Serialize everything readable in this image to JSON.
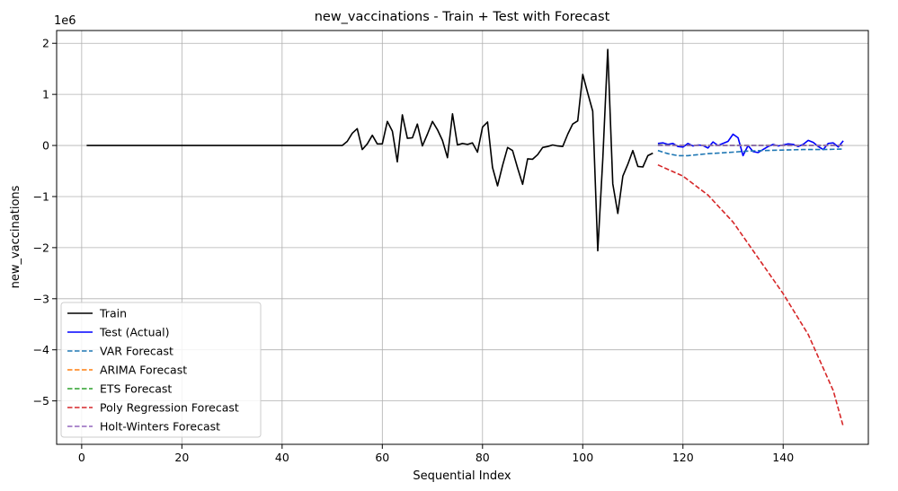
{
  "chart_data": {
    "type": "line",
    "title": "new_vaccinations - Train + Test with Forecast",
    "xlabel": "Sequential Index",
    "ylabel": "new_vaccinations",
    "offset_label": "1e6",
    "xlim": [
      -5,
      157
    ],
    "ylim": [
      -5.85,
      2.25
    ],
    "xticks": [
      0,
      20,
      40,
      60,
      80,
      100,
      120,
      140
    ],
    "yticks": [
      -5,
      -4,
      -3,
      -2,
      -1,
      0,
      1,
      2
    ],
    "grid": true,
    "legend_position": "lower-left",
    "series": [
      {
        "name": "Train",
        "color": "#000000",
        "dashed": false,
        "x": [
          1,
          52,
          53,
          54,
          55,
          56,
          57,
          58,
          59,
          60,
          61,
          62,
          63,
          64,
          65,
          66,
          67,
          68,
          69,
          70,
          71,
          72,
          73,
          74,
          75,
          76,
          77,
          78,
          79,
          80,
          81,
          82,
          83,
          84,
          85,
          86,
          87,
          88,
          89,
          90,
          91,
          92,
          93,
          94,
          95,
          96,
          97,
          98,
          99,
          100,
          101,
          102,
          103,
          104,
          105,
          106,
          107,
          108,
          109,
          110,
          111,
          112,
          113,
          114
        ],
        "y": [
          0,
          0,
          0.08,
          0.24,
          0.33,
          -0.08,
          0.03,
          0.2,
          0.03,
          0.03,
          0.47,
          0.28,
          -0.32,
          0.6,
          0.14,
          0.15,
          0.42,
          -0.01,
          0.22,
          0.47,
          0.31,
          0.1,
          -0.24,
          0.62,
          0.01,
          0.04,
          0.02,
          0.05,
          -0.13,
          0.36,
          0.46,
          -0.43,
          -0.79,
          -0.39,
          -0.04,
          -0.1,
          -0.44,
          -0.76,
          -0.26,
          -0.27,
          -0.18,
          -0.04,
          -0.02,
          0.01,
          -0.01,
          -0.02,
          0.22,
          0.42,
          0.48,
          1.39,
          1.02,
          0.67,
          -2.06,
          -0.26,
          1.88,
          -0.75,
          -1.33,
          -0.6,
          -0.37,
          -0.1,
          -0.41,
          -0.42,
          -0.2,
          -0.15
        ]
      },
      {
        "name": "Test (Actual)",
        "color": "#0000ff",
        "dashed": false,
        "x": [
          115,
          116,
          117,
          118,
          119,
          120,
          121,
          122,
          123,
          124,
          125,
          126,
          127,
          128,
          129,
          130,
          131,
          132,
          133,
          134,
          135,
          136,
          137,
          138,
          139,
          140,
          141,
          142,
          143,
          144,
          145,
          146,
          147,
          148,
          149,
          150,
          151,
          152
        ],
        "y": [
          0.04,
          0.05,
          0.02,
          0.04,
          -0.02,
          -0.03,
          0.04,
          -0.01,
          0.01,
          0.0,
          -0.05,
          0.07,
          0.0,
          0.04,
          0.08,
          0.22,
          0.15,
          -0.2,
          0.0,
          -0.12,
          -0.14,
          -0.08,
          -0.02,
          0.02,
          -0.01,
          0.01,
          0.03,
          0.02,
          -0.02,
          0.02,
          0.1,
          0.06,
          -0.02,
          -0.08,
          0.04,
          0.05,
          -0.03,
          0.09
        ]
      },
      {
        "name": "VAR Forecast",
        "color": "#1f77b4",
        "dashed": true,
        "x": [
          115,
          117,
          119,
          121,
          123,
          125,
          127,
          130,
          133,
          136,
          140,
          144,
          148,
          152
        ],
        "y": [
          -0.1,
          -0.16,
          -0.2,
          -0.2,
          -0.18,
          -0.16,
          -0.15,
          -0.13,
          -0.11,
          -0.1,
          -0.09,
          -0.08,
          -0.08,
          -0.07
        ]
      },
      {
        "name": "ARIMA Forecast",
        "color": "#ff7f0e",
        "dashed": true,
        "x": [
          115,
          120,
          125,
          130,
          135,
          140,
          145,
          150,
          152
        ],
        "y": [
          0.01,
          0.0,
          0.0,
          0.0,
          0.0,
          0.0,
          0.0,
          0.0,
          0.0
        ]
      },
      {
        "name": "ETS Forecast",
        "color": "#2ca02c",
        "dashed": true,
        "x": [
          115,
          120,
          125,
          130,
          135,
          140,
          145,
          150,
          152
        ],
        "y": [
          0.01,
          0.0,
          0.0,
          0.0,
          0.0,
          0.0,
          0.0,
          0.0,
          0.0
        ]
      },
      {
        "name": "Poly Regression Forecast",
        "color": "#d62728",
        "dashed": true,
        "x": [
          115,
          120,
          125,
          130,
          135,
          140,
          145,
          150,
          152
        ],
        "y": [
          -0.38,
          -0.6,
          -0.97,
          -1.5,
          -2.2,
          -2.9,
          -3.7,
          -4.8,
          -5.5
        ]
      },
      {
        "name": "Holt-Winters Forecast",
        "color": "#9467bd",
        "dashed": true,
        "x": [
          115,
          118,
          121,
          124,
          127,
          130,
          133,
          136,
          139,
          142,
          145,
          148,
          151,
          152
        ],
        "y": [
          0.0,
          0.0,
          0.0,
          0.0,
          0.0,
          0.0,
          0.0,
          0.0,
          0.0,
          0.0,
          0.0,
          0.0,
          0.0,
          0.0
        ]
      }
    ]
  }
}
